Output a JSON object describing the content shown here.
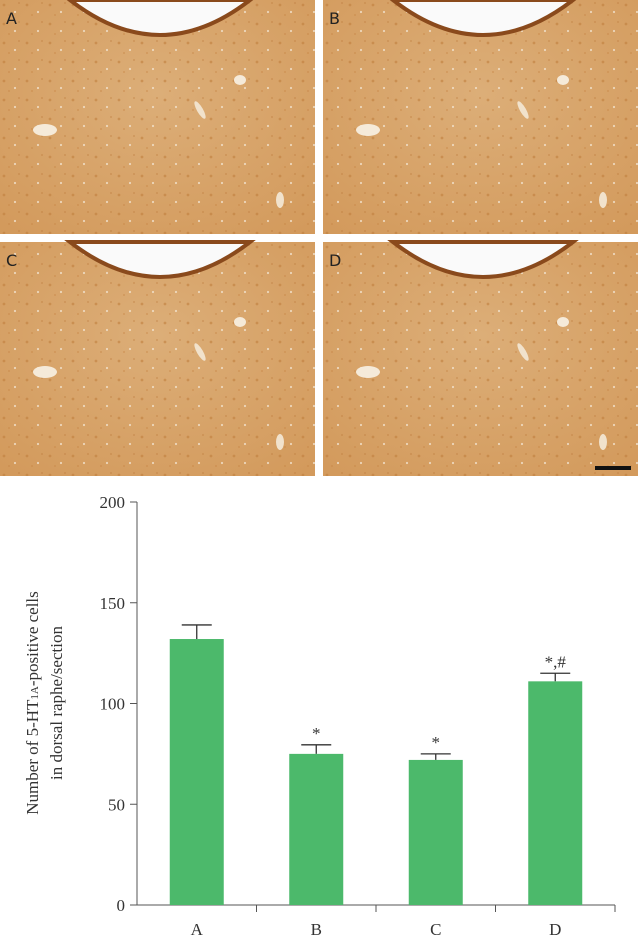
{
  "panels": [
    "A",
    "B",
    "C",
    "D"
  ],
  "chart_data": {
    "type": "bar",
    "ylabel": {
      "line1": [
        "Number of 5-HT",
        "1A",
        "-positive cells"
      ],
      "line2": "in dorsal raphe/section"
    },
    "categories": [
      "A",
      "B",
      "C",
      "D"
    ],
    "values": [
      132,
      75,
      72,
      111
    ],
    "errors": [
      7,
      4.5,
      3,
      4
    ],
    "significance": [
      null,
      "*",
      "*",
      "*,#"
    ],
    "color": "#4cb96b",
    "ylim": [
      0,
      200
    ],
    "yticks": [
      0,
      50,
      100,
      150,
      200
    ]
  }
}
